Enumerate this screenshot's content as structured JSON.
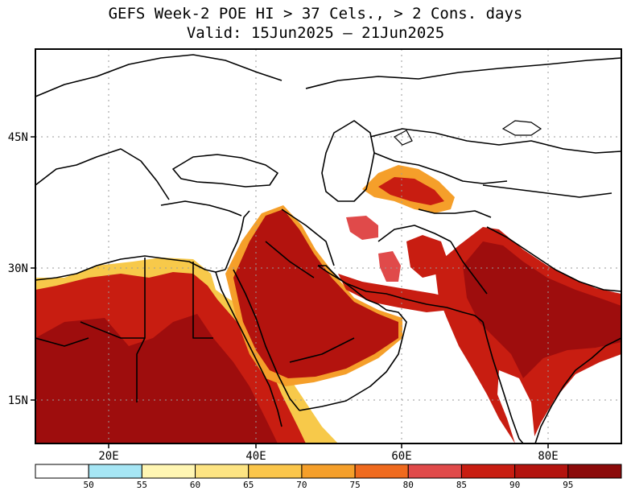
{
  "title": {
    "line1": "GEFS Week-2 POE HI > 37 Cels., > 2 Cons. days",
    "line2": "Valid: 15Jun2025 – 21Jun2025"
  },
  "map": {
    "lon_ticks": [
      "20E",
      "40E",
      "60E",
      "80E"
    ],
    "lat_ticks": [
      "45N",
      "30N",
      "15N"
    ],
    "extent": {
      "lon": [
        10,
        90
      ],
      "lat": [
        10,
        49
      ]
    },
    "colors": {
      "hot_core": "#a50f15",
      "hot": "#c81d11",
      "warm": "#e34a33",
      "orange": "#f7931e",
      "light": "#fdd24a",
      "pale": "#fff3a0",
      "cyan": "#a6e6f5",
      "border": "#000000",
      "grid": "#9a9a9a"
    }
  },
  "colorbar": {
    "labels": [
      "50",
      "55",
      "60",
      "65",
      "70",
      "75",
      "80",
      "85",
      "90",
      "95"
    ],
    "colors": [
      "#ffffff",
      "#a6e6f5",
      "#fff6b3",
      "#fde483",
      "#fbc64b",
      "#f59f2a",
      "#ef6a1e",
      "#e04a4a",
      "#c81d11",
      "#b3130e",
      "#8b0a0a"
    ]
  }
}
